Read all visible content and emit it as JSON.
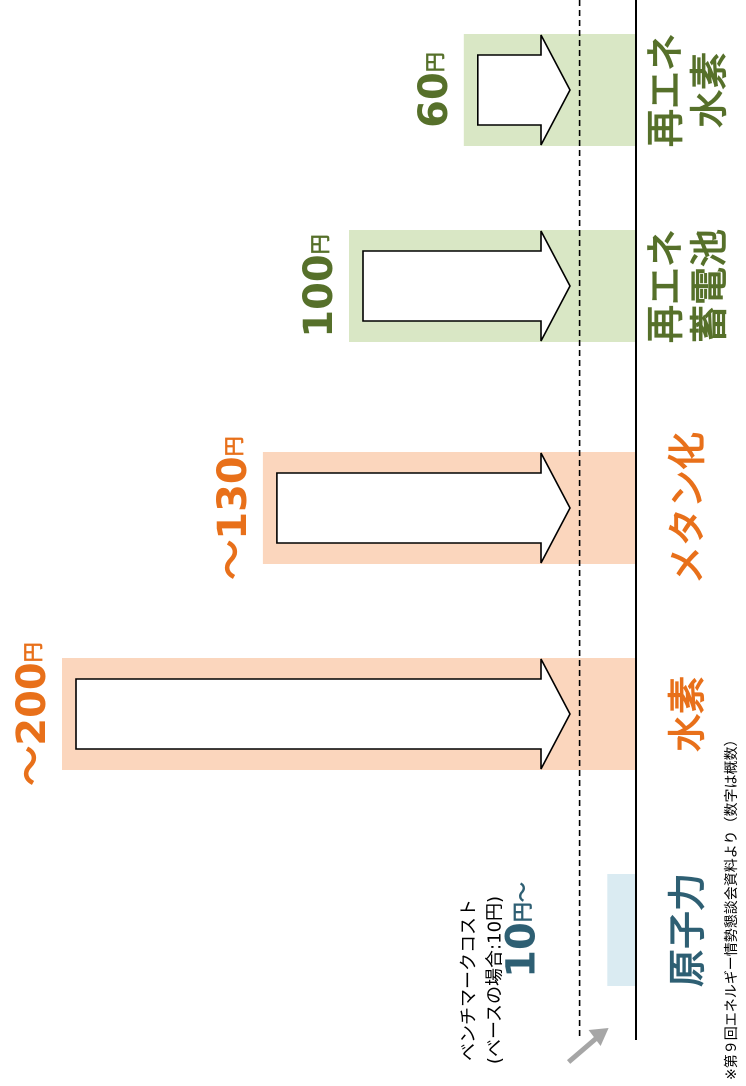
{
  "chart_data": {
    "type": "bar",
    "categories": [
      "原子力",
      "水素",
      "メタン化",
      "再エネ蓄電池",
      "再エネ水素"
    ],
    "category_lines": [
      [
        "原子力"
      ],
      [
        "水素"
      ],
      [
        "メタン化"
      ],
      [
        "再エネ",
        "蓄電池"
      ],
      [
        "再エネ",
        "水素"
      ]
    ],
    "values": [
      10,
      200,
      130,
      100,
      60
    ],
    "value_labels": [
      {
        "num": "10",
        "unit": "円～",
        "prefix": ""
      },
      {
        "num": "200",
        "unit": "円",
        "prefix": "～"
      },
      {
        "num": "130",
        "unit": "円",
        "prefix": "～"
      },
      {
        "num": "100",
        "unit": "円",
        "prefix": ""
      },
      {
        "num": "60",
        "unit": "円",
        "prefix": ""
      }
    ],
    "arrows": [
      false,
      true,
      true,
      true,
      true
    ],
    "colors": {
      "nuclear_fill": "#daebf2",
      "nuclear_text": "#2e5f73",
      "hydrogen_fill": "#fbd6bd",
      "hydrogen_text": "#e8701a",
      "renewable_fill": "#d9e7c5",
      "renewable_text": "#56702a",
      "baseline": "#000000",
      "arrow_stroke": "#000000",
      "pointer": "#a6a6a6"
    },
    "benchmark": {
      "value": 10,
      "line1": "ベンチマークコスト",
      "line2": "(ベースの場合:10円)",
      "line_style": "dashed"
    },
    "footnote": "※第９回エネルギー情勢懇談会資料より（数字は概数）",
    "ylim": [
      0,
      200
    ],
    "orientation": "rotated-90-clockwise"
  }
}
